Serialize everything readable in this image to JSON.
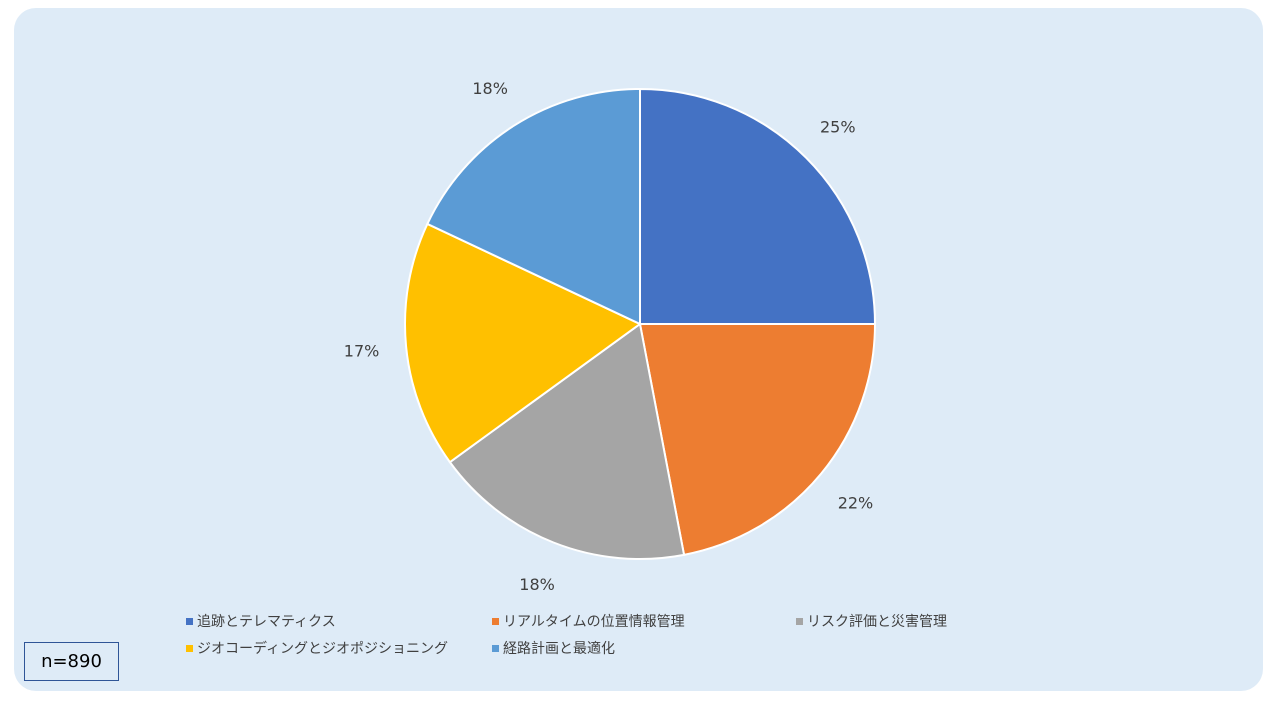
{
  "sample_label": "n=890",
  "chart_data": {
    "type": "pie",
    "categories": [
      "追跡とテレマティクス",
      "リアルタイムの位置情報管理",
      "リスク評価と災害管理",
      "ジオコーディングとジオポジショニング",
      "経路計画と最適化"
    ],
    "values": [
      25,
      22,
      18,
      17,
      18
    ],
    "value_labels": [
      "25%",
      "22%",
      "18%",
      "17%",
      "18%"
    ],
    "colors": [
      "#4472c4",
      "#ed7d31",
      "#a5a5a5",
      "#ffc000",
      "#5b9bd5"
    ],
    "title": "",
    "legend_position": "bottom"
  }
}
